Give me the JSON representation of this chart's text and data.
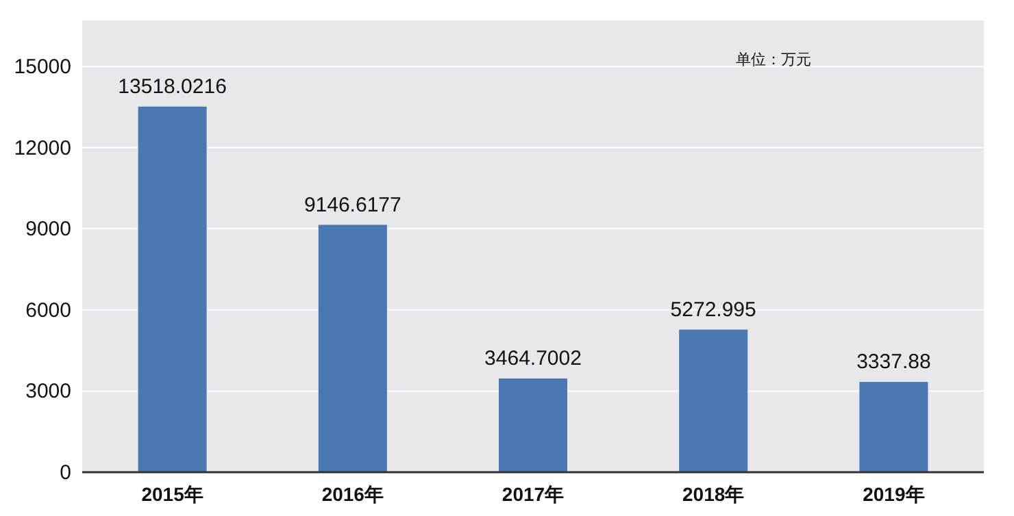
{
  "chart_data": {
    "type": "bar",
    "categories": [
      "2015年",
      "2016年",
      "2017年",
      "2018年",
      "2019年"
    ],
    "values": [
      13518.0216,
      9146.6177,
      3464.7002,
      5272.995,
      3337.88
    ],
    "color": "#4a78b3",
    "data_labels": true,
    "ylim": [
      0,
      16700
    ],
    "yticks": [
      0,
      3000,
      6000,
      9000,
      12000,
      15000
    ],
    "grid": "y",
    "annotations": [
      "单位：万元"
    ]
  }
}
